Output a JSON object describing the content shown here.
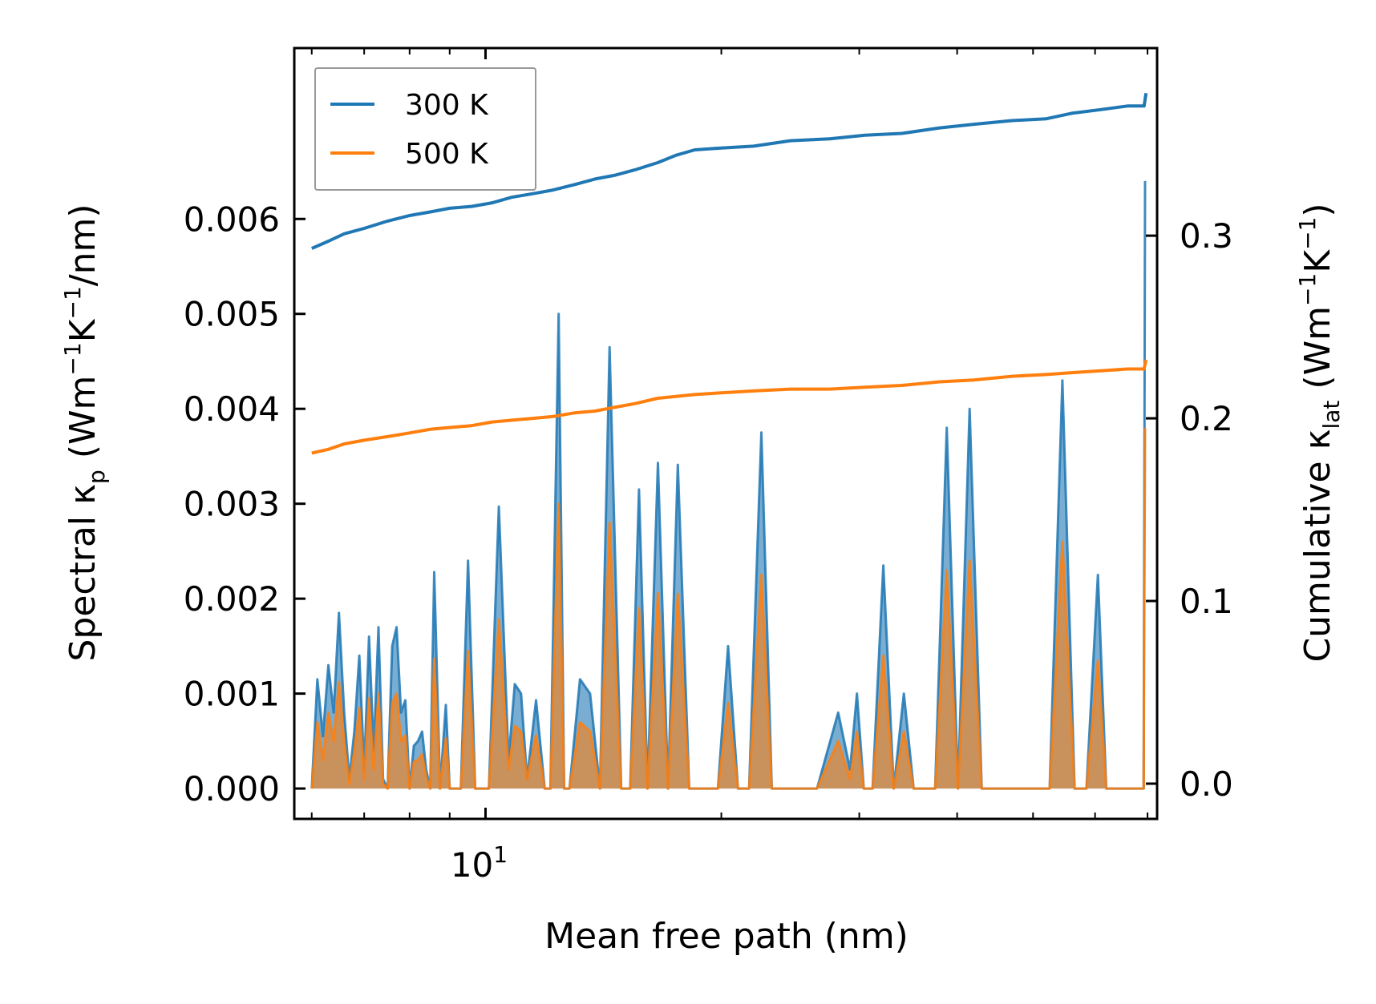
{
  "chart_data": {
    "type": "line",
    "x_scale": "log",
    "xlabel": "Mean free path (nm)",
    "ylabel_left": {
      "prefix": "Spectral κ",
      "sub": "p",
      "mid": " (Wm",
      "sup1": "−1",
      "mid2": "K",
      "sup2": "−1",
      "suffix": "/nm)"
    },
    "ylabel_right": {
      "prefix": "Cumulative κ",
      "sub": "lat",
      "mid": " (Wm",
      "sup1": "−1",
      "mid2": "K",
      "sup2": "−1",
      "suffix": ")"
    },
    "xlim": [
      5.7,
      72
    ],
    "ylim_left": [
      -0.00032,
      0.0078
    ],
    "ylim_right": [
      -0.0193,
      0.4027
    ],
    "x_tick_major": {
      "value": 10,
      "base": "10",
      "exp": "1"
    },
    "y_left_ticks": [
      {
        "value": 0.0,
        "label": "0.000"
      },
      {
        "value": 0.001,
        "label": "0.001"
      },
      {
        "value": 0.002,
        "label": "0.002"
      },
      {
        "value": 0.003,
        "label": "0.003"
      },
      {
        "value": 0.004,
        "label": "0.004"
      },
      {
        "value": 0.005,
        "label": "0.005"
      },
      {
        "value": 0.006,
        "label": "0.006"
      }
    ],
    "y_right_ticks": [
      {
        "value": 0.0,
        "label": "0.0"
      },
      {
        "value": 0.1,
        "label": "0.1"
      },
      {
        "value": 0.2,
        "label": "0.2"
      },
      {
        "value": 0.3,
        "label": "0.3"
      }
    ],
    "series": [
      {
        "name": "300 K",
        "color": "#1f77b4",
        "axis": "right",
        "x": [
          6.0,
          6.3,
          6.6,
          7.0,
          7.5,
          8.0,
          8.5,
          9.0,
          9.6,
          10.2,
          10.8,
          11.5,
          12.2,
          13.0,
          13.8,
          14.6,
          15.5,
          16.6,
          17.5,
          18.5,
          20.0,
          22.0,
          24.5,
          27.5,
          30.5,
          34.0,
          38.0,
          42.0,
          47.0,
          52.0,
          56.0,
          61.0,
          66.0,
          69.3,
          69.7
        ],
        "values": [
          0.293,
          0.297,
          0.301,
          0.304,
          0.308,
          0.311,
          0.313,
          0.315,
          0.316,
          0.318,
          0.321,
          0.323,
          0.325,
          0.328,
          0.331,
          0.333,
          0.336,
          0.34,
          0.344,
          0.347,
          0.348,
          0.349,
          0.352,
          0.353,
          0.355,
          0.356,
          0.359,
          0.361,
          0.363,
          0.364,
          0.367,
          0.369,
          0.371,
          0.371,
          0.378
        ]
      },
      {
        "name": "500 K",
        "color": "#ff7f0e",
        "axis": "right",
        "x": [
          6.0,
          6.3,
          6.6,
          7.0,
          7.5,
          8.0,
          8.5,
          9.0,
          9.6,
          10.2,
          10.8,
          11.5,
          12.2,
          13.0,
          13.8,
          14.6,
          15.5,
          16.6,
          17.5,
          18.5,
          20.0,
          22.0,
          24.5,
          27.5,
          30.5,
          34.0,
          38.0,
          42.0,
          47.0,
          52.0,
          56.0,
          61.0,
          66.0,
          69.3,
          69.7
        ],
        "values": [
          0.181,
          0.183,
          0.186,
          0.188,
          0.19,
          0.192,
          0.194,
          0.195,
          0.196,
          0.198,
          0.199,
          0.2,
          0.201,
          0.203,
          0.204,
          0.206,
          0.208,
          0.211,
          0.212,
          0.213,
          0.214,
          0.215,
          0.216,
          0.216,
          0.217,
          0.218,
          0.22,
          0.221,
          0.223,
          0.224,
          0.225,
          0.226,
          0.227,
          0.227,
          0.232
        ]
      }
    ],
    "spectral_series": [
      {
        "name": "300 K spectral",
        "color": "#1f77b4",
        "axis": "left",
        "x": [
          6.0,
          6.1,
          6.2,
          6.3,
          6.4,
          6.5,
          6.6,
          6.7,
          6.8,
          6.9,
          7.0,
          7.1,
          7.2,
          7.3,
          7.4,
          7.5,
          7.6,
          7.7,
          7.8,
          7.9,
          8.0,
          8.1,
          8.2,
          8.3,
          8.4,
          8.5,
          8.6,
          8.75,
          8.9,
          9.0,
          9.1,
          9.3,
          9.5,
          9.7,
          9.9,
          10.1,
          10.4,
          10.7,
          10.9,
          11.1,
          11.3,
          11.6,
          11.9,
          12.1,
          12.4,
          12.6,
          12.8,
          13.2,
          13.6,
          14.0,
          14.4,
          14.9,
          15.3,
          15.7,
          16.1,
          16.6,
          17.1,
          17.6,
          18.2,
          18.6,
          19.1,
          19.8,
          20.4,
          21.0,
          21.7,
          22.5,
          23.2,
          24.0,
          24.8,
          26.5,
          28.2,
          29.2,
          29.8,
          30.4,
          31.2,
          32.2,
          33.2,
          34.2,
          35.2,
          36.2,
          37.5,
          38.8,
          40.1,
          41.5,
          43.0,
          44.5,
          46.0,
          48.0,
          50.5,
          52.5,
          54.5,
          56.5,
          58.5,
          60.5,
          62.0,
          64.0,
          66.5,
          69.2,
          69.5
        ],
        "values": [
          0,
          0.00115,
          0.00055,
          0.0013,
          0.0008,
          0.00185,
          0.0008,
          0.0001,
          0.0006,
          0.0014,
          0.0002,
          0.0016,
          0.0004,
          0.0017,
          0.0001,
          0.0,
          0.0015,
          0.0017,
          0.0008,
          0.00093,
          0.0,
          0.00045,
          0.0005,
          0.0006,
          0.0002,
          0.0,
          0.00228,
          0.0,
          0.00088,
          0.0,
          0.0,
          0.0,
          0.0024,
          0.0,
          0.0,
          0.0,
          0.00297,
          0.0003,
          0.0011,
          0.001,
          0.0001,
          0.00093,
          0.0,
          0.0,
          0.005,
          0.0,
          0.0,
          0.00115,
          0.001,
          0.0,
          0.00465,
          0.0,
          0.0,
          0.00315,
          0.0,
          0.00343,
          0.0,
          0.00341,
          0.0,
          0.0,
          0.0,
          0.0,
          0.0015,
          0.0,
          0.0,
          0.00375,
          0.0,
          0.0,
          0.0,
          0.0,
          0.0008,
          0.0002,
          0.001,
          0.0,
          0.0,
          0.00235,
          0.0,
          0.001,
          0.0,
          0.0,
          0.0,
          0.0038,
          0.0,
          0.004,
          0.0,
          0.0,
          0.0,
          0.0,
          0.0,
          0.0,
          0.0043,
          0.0,
          0.0,
          0.00225,
          0.0,
          0.0,
          0.0,
          0.0,
          0.0064
        ]
      },
      {
        "name": "500 K spectral",
        "color": "#ff7f0e",
        "axis": "left",
        "x": [
          6.0,
          6.1,
          6.2,
          6.3,
          6.4,
          6.5,
          6.6,
          6.7,
          6.8,
          6.9,
          7.0,
          7.1,
          7.2,
          7.3,
          7.4,
          7.5,
          7.6,
          7.7,
          7.8,
          7.9,
          8.0,
          8.1,
          8.2,
          8.3,
          8.4,
          8.5,
          8.6,
          8.75,
          8.9,
          9.0,
          9.1,
          9.3,
          9.5,
          9.7,
          9.9,
          10.1,
          10.4,
          10.7,
          10.9,
          11.1,
          11.3,
          11.6,
          11.9,
          12.1,
          12.4,
          12.6,
          12.8,
          13.2,
          13.6,
          14.0,
          14.4,
          14.9,
          15.3,
          15.7,
          16.1,
          16.6,
          17.1,
          17.6,
          18.2,
          18.6,
          19.1,
          19.8,
          20.4,
          21.0,
          21.7,
          22.5,
          23.2,
          24.0,
          24.8,
          26.5,
          28.2,
          29.2,
          29.8,
          30.4,
          31.2,
          32.2,
          33.2,
          34.2,
          35.2,
          36.2,
          37.5,
          38.8,
          40.1,
          41.5,
          43.0,
          44.5,
          46.0,
          48.0,
          50.5,
          52.5,
          54.5,
          56.5,
          58.5,
          60.5,
          62.0,
          64.0,
          66.5,
          69.2,
          69.5
        ],
        "values": [
          0,
          0.0007,
          0.0003,
          0.0008,
          0.0005,
          0.00112,
          0.0005,
          5e-05,
          0.0004,
          0.00085,
          0.0001,
          0.00095,
          0.0002,
          0.001,
          5e-05,
          0.0,
          0.0009,
          0.001,
          0.0005,
          0.00056,
          0.0,
          0.00028,
          0.0003,
          0.00036,
          0.00012,
          0.0,
          0.00137,
          0.0,
          0.00053,
          0.0,
          0.0,
          0.0,
          0.00145,
          0.0,
          0.0,
          0.0,
          0.00178,
          0.0002,
          0.00066,
          0.0006,
          0.0001,
          0.00056,
          0.0,
          0.0,
          0.003,
          0.0,
          0.0,
          0.0007,
          0.0006,
          0.0,
          0.0028,
          0.0,
          0.0,
          0.0019,
          0.0,
          0.00206,
          0.0,
          0.00205,
          0.0,
          0.0,
          0.0,
          0.0,
          0.0009,
          0.0,
          0.0,
          0.00225,
          0.0,
          0.0,
          0.0,
          0.0,
          0.0005,
          0.0001,
          0.0006,
          0.0,
          0.0,
          0.0014,
          0.0,
          0.0006,
          0.0,
          0.0,
          0.0,
          0.0023,
          0.0,
          0.0024,
          0.0,
          0.0,
          0.0,
          0.0,
          0.0,
          0.0,
          0.0026,
          0.0,
          0.0,
          0.00135,
          0.0,
          0.0,
          0.0,
          0.0,
          0.0038
        ]
      }
    ],
    "legend": {
      "placement": "top-left",
      "entries": [
        "300 K",
        "500 K"
      ]
    }
  }
}
